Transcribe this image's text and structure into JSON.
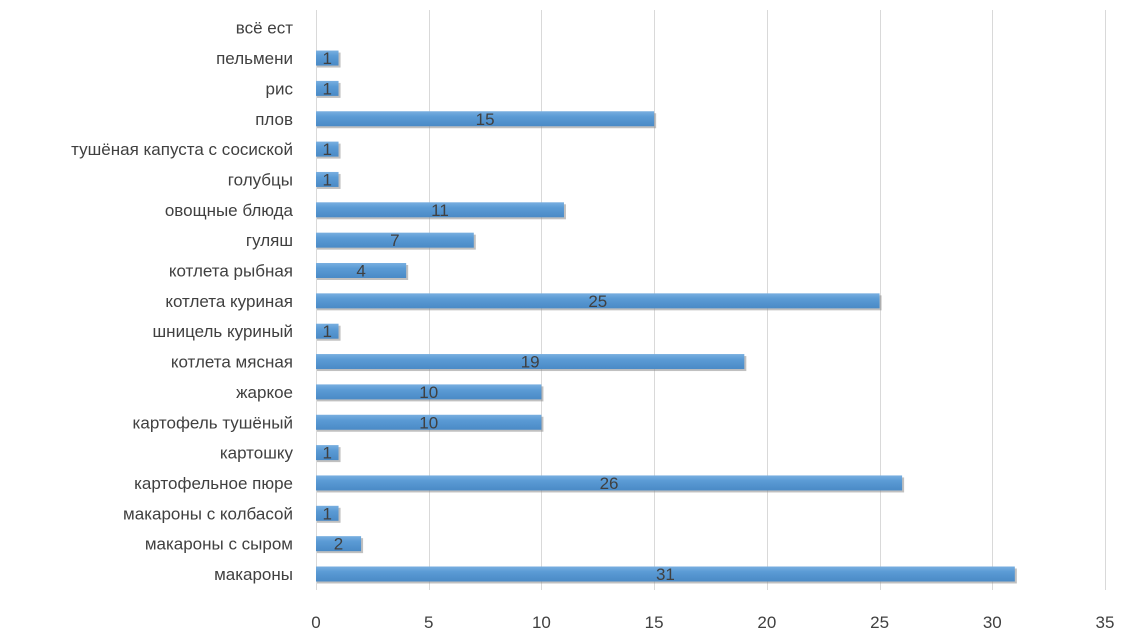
{
  "chart_data": {
    "type": "bar",
    "orientation": "horizontal",
    "categories": [
      "макароны",
      "макароны с сыром",
      "макароны с колбасой",
      "картофельное пюре",
      "картошку",
      "картофель тушёный",
      "жаркое",
      "котлета мясная",
      "шницель куриный",
      "котлета куриная",
      "котлета рыбная",
      "гуляш",
      "овощные блюда",
      "голубцы",
      "тушёная капуста с сосиской",
      "плов",
      "рис",
      "пельмени",
      "всё ест"
    ],
    "values": [
      31,
      2,
      1,
      26,
      1,
      10,
      10,
      19,
      1,
      25,
      4,
      7,
      11,
      1,
      1,
      15,
      1,
      1,
      null
    ],
    "data_labels": [
      "31",
      "2",
      "1",
      "26",
      "1",
      "10",
      "10",
      "19",
      "1",
      "25",
      "4",
      "7",
      "11",
      "1",
      "1",
      "15",
      "1",
      "1",
      ""
    ],
    "x_ticks": [
      "0",
      "5",
      "10",
      "15",
      "20",
      "25",
      "30",
      "35"
    ],
    "xlim": [
      0,
      35
    ],
    "grid": true,
    "legend": "none",
    "title": "",
    "xlabel": "",
    "ylabel": "",
    "bar_color": "#5b9bd5",
    "bar_top_color": "#79afe0",
    "bar_shadow_color": "#8c8c8c",
    "grid_color": "#d9d9d9",
    "text_color": "#404040"
  }
}
